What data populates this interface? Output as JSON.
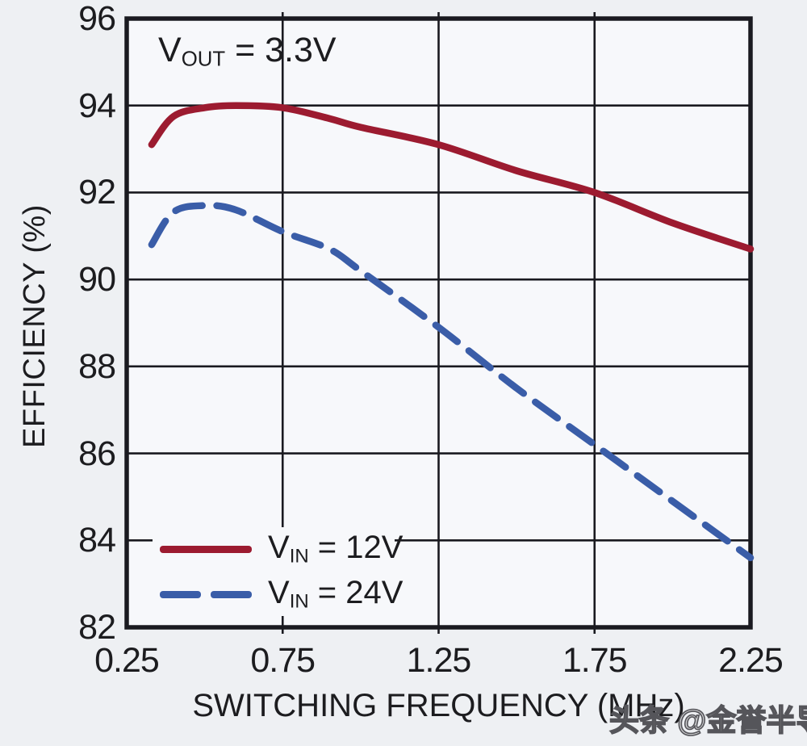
{
  "colors": {
    "page_bg": "#eef0f3",
    "plot_bg": "#f7f8fb",
    "grid": "#1a1a20",
    "text": "#1c1c1f",
    "watermark": "#55555a"
  },
  "annotation": {
    "base": "V",
    "sub": "OUT",
    "rest": " = 3.3V"
  },
  "legend": {
    "items": [
      {
        "base": "V",
        "sub": "IN",
        "rest": " = 12V",
        "style": "solid"
      },
      {
        "base": "V",
        "sub": "IN",
        "rest": " = 24V",
        "style": "dashed"
      }
    ]
  },
  "watermark": "头条 @金誉半导体",
  "chart_data": {
    "type": "line",
    "xlabel": "SWITCHING FREQUENCY (MHz)",
    "ylabel": "EFFICIENCY (%)",
    "annotation": "VOUT = 3.3V",
    "xlim": [
      0.25,
      2.25
    ],
    "ylim": [
      82,
      96
    ],
    "x_ticks": [
      0.25,
      0.75,
      1.25,
      1.75,
      2.25
    ],
    "y_ticks": [
      96,
      94,
      92,
      90,
      88,
      86,
      84,
      82
    ],
    "grid": true,
    "legend_position": "bottom-left",
    "x": [
      0.33,
      0.4,
      0.5,
      0.6,
      0.75,
      0.9,
      1.0,
      1.25,
      1.5,
      1.75,
      2.0,
      2.25
    ],
    "series": [
      {
        "name": "VIN = 12V",
        "color": "#9c1b30",
        "dash": "solid",
        "values": [
          93.1,
          93.75,
          93.95,
          94.0,
          93.95,
          93.7,
          93.5,
          93.1,
          92.5,
          92.0,
          91.3,
          90.7
        ]
      },
      {
        "name": "VIN = 24V",
        "color": "#3a5da8",
        "dash": "dashed",
        "values": [
          90.8,
          91.55,
          91.7,
          91.6,
          91.1,
          90.7,
          90.2,
          88.9,
          87.5,
          86.2,
          84.9,
          83.6
        ]
      }
    ]
  }
}
